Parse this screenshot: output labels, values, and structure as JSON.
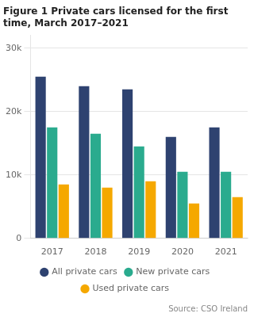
{
  "chart_data": {
    "type": "bar",
    "title": "Figure 1 Private cars licensed for the first\ntime, March 2017–2021",
    "annotations": [
      "Source: CSO Ireland"
    ],
    "categories": [
      "2017",
      "2018",
      "2019",
      "2020",
      "2021"
    ],
    "series": [
      {
        "name": "All private cars",
        "color": "#2e4270",
        "values": [
          25500,
          24000,
          23500,
          16000,
          17500
        ]
      },
      {
        "name": "New private cars",
        "color": "#2aab8e",
        "values": [
          17500,
          16500,
          14500,
          10500,
          10500
        ]
      },
      {
        "name": "Used private cars",
        "color": "#f5a800",
        "values": [
          8500,
          8000,
          9000,
          5500,
          6500
        ]
      }
    ],
    "ylim": [
      0,
      32000
    ],
    "yticks": [
      0,
      {
        "value": 10000,
        "label": "10k"
      },
      {
        "value": 20000,
        "label": "20k"
      },
      {
        "value": 30000,
        "label": "30k"
      }
    ],
    "grid": true,
    "legend": "bottom"
  }
}
